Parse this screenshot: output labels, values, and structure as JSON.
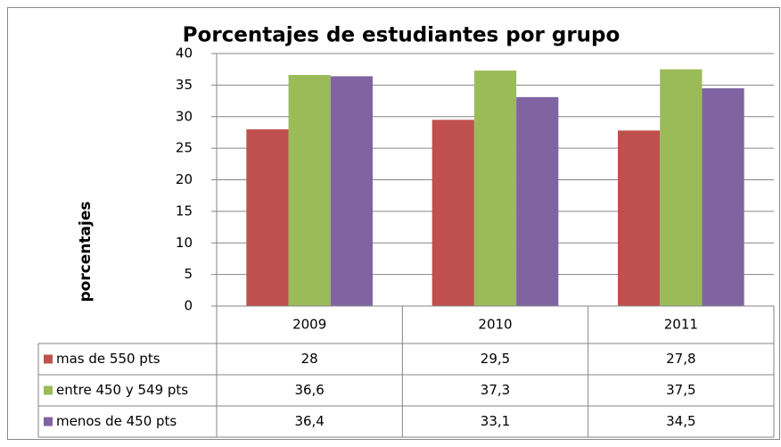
{
  "chart_data": {
    "type": "bar",
    "title": "Porcentajes de estudiantes por grupo",
    "y_label": "porcentajes",
    "categories": [
      "2009",
      "2010",
      "2011"
    ],
    "series": [
      {
        "name": "mas de 550 pts",
        "color": "#c0504d",
        "values": [
          28,
          29.5,
          27.8
        ],
        "value_labels": [
          "28",
          "29,5",
          "27,8"
        ]
      },
      {
        "name": "entre 450 y 549 pts",
        "color": "#9bbb59",
        "values": [
          36.6,
          37.3,
          37.5
        ],
        "value_labels": [
          "36,6",
          "37,3",
          "37,5"
        ]
      },
      {
        "name": "menos de 450 pts",
        "color": "#8064a2",
        "values": [
          36.4,
          33.1,
          34.5
        ],
        "value_labels": [
          "36,4",
          "33,1",
          "34,5"
        ]
      }
    ],
    "ylim": [
      0,
      40
    ],
    "yticks": [
      0,
      5,
      10,
      15,
      20,
      25,
      30,
      35,
      40
    ],
    "grid": true,
    "data_table": true
  }
}
